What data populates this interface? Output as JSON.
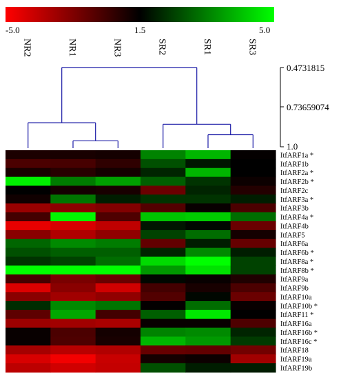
{
  "chart_data": {
    "type": "heatmap",
    "color_scale": {
      "min": -5.0,
      "mid": 1.5,
      "max": 5.0,
      "min_label": "-5.0",
      "mid_label": "1.5",
      "max_label": "5.0",
      "low_color": "#ff0000",
      "mid_color": "#000000",
      "high_color": "#00ff00"
    },
    "columns": [
      "NR2",
      "NR1",
      "NR3",
      "SR2",
      "SR1",
      "SR3"
    ],
    "rows": [
      {
        "label": "ItfARF1a *",
        "values": [
          0.8,
          0.9,
          1.0,
          3.3,
          4.0,
          1.4
        ]
      },
      {
        "label": "ItfARF1b",
        "values": [
          -0.4,
          -0.3,
          0.3,
          2.6,
          1.8,
          1.5
        ]
      },
      {
        "label": "ItfARF2a *",
        "values": [
          0.9,
          0.5,
          1.0,
          2.0,
          4.0,
          1.5
        ]
      },
      {
        "label": "ItfARF2b *",
        "values": [
          4.8,
          3.2,
          3.7,
          2.8,
          2.2,
          1.2
        ]
      },
      {
        "label": "ItfARF2c",
        "values": [
          1.5,
          1.0,
          0.9,
          -1.2,
          2.0,
          0.6
        ]
      },
      {
        "label": "ItfARF3a *",
        "values": [
          1.1,
          3.1,
          1.9,
          2.2,
          2.2,
          1.9
        ]
      },
      {
        "label": "ItfARF3b",
        "values": [
          -2.4,
          -2.1,
          -1.8,
          -0.6,
          1.3,
          -0.4
        ]
      },
      {
        "label": "ItfARF4a *",
        "values": [
          -0.2,
          4.9,
          -0.5,
          4.2,
          4.3,
          3.0
        ]
      },
      {
        "label": "ItfARF4b",
        "values": [
          -4.4,
          -4.0,
          -3.4,
          1.8,
          1.6,
          -1.2
        ]
      },
      {
        "label": "ItfARF5",
        "values": [
          -2.0,
          -3.0,
          -2.2,
          2.4,
          3.0,
          1.0
        ]
      },
      {
        "label": "ItfARF6a",
        "values": [
          2.9,
          3.4,
          3.2,
          -1.0,
          1.9,
          -1.1
        ]
      },
      {
        "label": "ItfARF6b *",
        "values": [
          2.6,
          2.8,
          2.8,
          2.0,
          3.4,
          1.9
        ]
      },
      {
        "label": "ItfARF8a *",
        "values": [
          2.2,
          2.4,
          3.0,
          4.5,
          5.0,
          2.4
        ]
      },
      {
        "label": "ItfARF8b *",
        "values": [
          5.0,
          5.0,
          5.0,
          3.6,
          4.6,
          2.4
        ]
      },
      {
        "label": "ItfARF9a",
        "values": [
          -0.3,
          -1.6,
          -1.2,
          1.6,
          1.3,
          0.7
        ]
      },
      {
        "label": "ItfARF9b",
        "values": [
          -4.1,
          -2.0,
          -3.8,
          -0.2,
          0.9,
          -0.4
        ]
      },
      {
        "label": "ItfARF10a",
        "values": [
          -2.0,
          -2.6,
          -2.2,
          -0.6,
          1.6,
          -1.2
        ]
      },
      {
        "label": "ItfARF10b *",
        "values": [
          2.1,
          3.4,
          3.1,
          1.4,
          3.0,
          1.3
        ]
      },
      {
        "label": "ItfARF11 *",
        "values": [
          -0.9,
          3.8,
          -0.2,
          2.8,
          4.7,
          1.5
        ]
      },
      {
        "label": "ItfARF16a",
        "values": [
          -2.5,
          -2.6,
          -2.8,
          1.3,
          1.3,
          -0.5
        ]
      },
      {
        "label": "ItfARF16b *",
        "values": [
          1.3,
          -0.4,
          1.0,
          3.3,
          3.4,
          2.0
        ]
      },
      {
        "label": "ItfARF16c *",
        "values": [
          1.3,
          -0.5,
          0.9,
          4.0,
          3.6,
          2.3
        ]
      },
      {
        "label": "ItfARF18",
        "values": [
          -2.7,
          -3.2,
          -3.0,
          -1.1,
          -1.0,
          -1.4
        ]
      },
      {
        "label": "ItfARF19a",
        "values": [
          -4.0,
          -4.7,
          -3.6,
          1.0,
          1.2,
          -2.6
        ]
      },
      {
        "label": "ItfARF19b",
        "values": [
          -3.3,
          -3.8,
          -3.5,
          2.6,
          1.9,
          1.9
        ]
      }
    ],
    "dendrogram": {
      "scale_labels": [
        "0.4731815",
        "0.73659074",
        "1.0"
      ],
      "merge_heights": {
        "nr1_nr3": 0.96,
        "sr1_sr3": 0.92,
        "sr2_sr1sr3": 0.85,
        "nr2_nr1nr3": 0.84,
        "root": 0.4731815
      }
    }
  }
}
